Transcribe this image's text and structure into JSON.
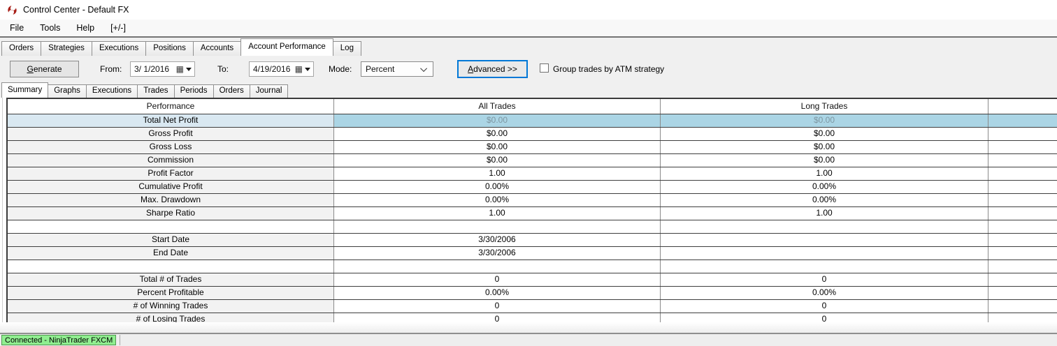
{
  "window": {
    "title": "Control Center - Default FX"
  },
  "menu": {
    "items": [
      "File",
      "Tools",
      "Help",
      "[+/-]"
    ]
  },
  "main_tabs": {
    "items": [
      "Orders",
      "Strategies",
      "Executions",
      "Positions",
      "Accounts",
      "Account Performance",
      "Log"
    ],
    "active": "Account Performance"
  },
  "toolbar": {
    "generate_label": "Generate",
    "from_label": "From:",
    "from_value": "3/ 1/2016",
    "to_label": "To:",
    "to_value": "4/19/2016",
    "mode_label": "Mode:",
    "mode_value": "Percent",
    "advanced_label": "Advanced >>",
    "group_checkbox_label": "Group trades by ATM strategy",
    "group_checkbox_checked": false
  },
  "report_tabs": {
    "items": [
      "Summary",
      "Graphs",
      "Executions",
      "Trades",
      "Periods",
      "Orders",
      "Journal"
    ],
    "active": "Summary"
  },
  "table": {
    "columns": [
      "Performance",
      "All Trades",
      "Long Trades",
      ""
    ],
    "rows": [
      {
        "label": "Total Net Profit",
        "all": "$0.00",
        "long": "$0.00",
        "selected": true
      },
      {
        "label": "Gross Profit",
        "all": "$0.00",
        "long": "$0.00"
      },
      {
        "label": "Gross Loss",
        "all": "$0.00",
        "long": "$0.00"
      },
      {
        "label": "Commission",
        "all": "$0.00",
        "long": "$0.00"
      },
      {
        "label": "Profit Factor",
        "all": "1.00",
        "long": "1.00"
      },
      {
        "label": "Cumulative Profit",
        "all": "0.00%",
        "long": "0.00%"
      },
      {
        "label": "Max. Drawdown",
        "all": "0.00%",
        "long": "0.00%"
      },
      {
        "label": "Sharpe Ratio",
        "all": "1.00",
        "long": "1.00"
      },
      {
        "label": "",
        "all": "",
        "long": "",
        "empty": true
      },
      {
        "label": "Start Date",
        "all": "3/30/2006",
        "long": ""
      },
      {
        "label": "End Date",
        "all": "3/30/2006",
        "long": ""
      },
      {
        "label": "",
        "all": "",
        "long": "",
        "empty": true
      },
      {
        "label": "Total # of Trades",
        "all": "0",
        "long": "0"
      },
      {
        "label": "Percent Profitable",
        "all": "0.00%",
        "long": "0.00%"
      },
      {
        "label": "# of Winning Trades",
        "all": "0",
        "long": "0"
      },
      {
        "label": "# of Losing Trades",
        "all": "0",
        "long": "0"
      }
    ]
  },
  "status_bar": {
    "connection_label": "Connected - NinjaTrader FXCM"
  },
  "colors": {
    "selected_row_label_bg": "#d9e8f1",
    "selected_row_value_bg": "#abd5e5",
    "selected_value_text": "#7e97a2",
    "connected_badge_bg": "#90ee90",
    "connected_badge_border": "#4e9a4e",
    "advanced_button_border": "#0078d7",
    "logo_red": "#a8201a"
  }
}
